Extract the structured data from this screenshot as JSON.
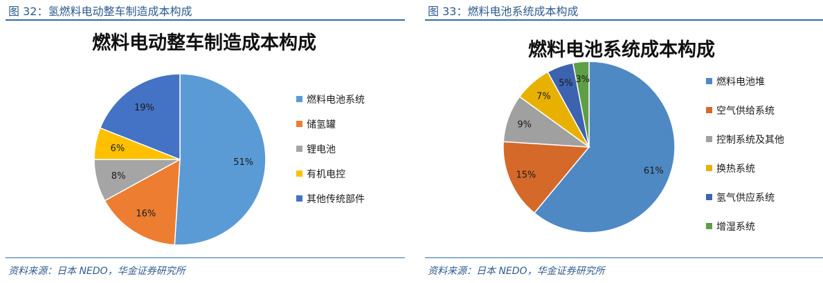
{
  "left": {
    "caption": "图 32：氢燃料电动整车制造成本构成",
    "source": "资料来源：日本 NEDO，华金证券研究所"
  },
  "right": {
    "caption": "图 33：燃料电池系统成本构成",
    "source": "资料来源：日本 NEDO，华金证券研究所"
  },
  "chart_data": [
    {
      "type": "pie",
      "title": "燃料电动整车制造成本构成",
      "categories": [
        "燃料电池系统",
        "储氢罐",
        "锂电池",
        "有机电控",
        "其他传统部件"
      ],
      "values": [
        51,
        16,
        8,
        6,
        19
      ],
      "labels": [
        "51%",
        "16%",
        "8%",
        "6%",
        "19%"
      ],
      "colors": [
        "#5b9bd5",
        "#ed7d31",
        "#a5a5a5",
        "#ffc000",
        "#4472c4"
      ],
      "start_angle_deg": 0,
      "direction": "clockwise",
      "legend": "right"
    },
    {
      "type": "pie",
      "title": "燃料电池系统成本构成",
      "categories": [
        "燃料电池堆",
        "空气供给系统",
        "控制系统及其他",
        "换热系统",
        "氢气供应系统",
        "增湿系统"
      ],
      "values": [
        61,
        15,
        9,
        7,
        5,
        3
      ],
      "labels": [
        "61%",
        "15%",
        "9%",
        "7%",
        "5%",
        "3%"
      ],
      "colors": [
        "#4f89c4",
        "#d4692a",
        "#a0a0a0",
        "#e8b100",
        "#3d63b0",
        "#5e9e44"
      ],
      "start_angle_deg": 0,
      "direction": "clockwise",
      "legend": "right"
    }
  ]
}
